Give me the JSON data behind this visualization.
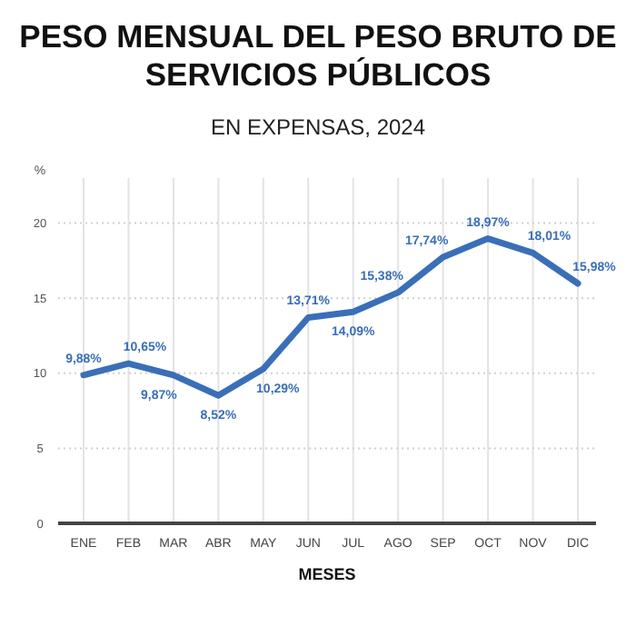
{
  "chart_data": {
    "type": "line",
    "title": "PESO MENSUAL DEL PESO BRUTO DE SERVICIOS PÚBLICOS",
    "subtitle": "EN EXPENSAS, 2024",
    "xlabel": "MESES",
    "ylabel": "%",
    "categories": [
      "ENE",
      "FEB",
      "MAR",
      "ABR",
      "MAY",
      "JUN",
      "JUL",
      "AGO",
      "SEP",
      "OCT",
      "NOV",
      "DIC"
    ],
    "values": [
      9.88,
      10.65,
      9.87,
      8.52,
      10.29,
      13.71,
      14.09,
      15.38,
      17.74,
      18.97,
      18.01,
      15.98
    ],
    "value_labels": [
      "9,88%",
      "10,65%",
      "9,87%",
      "8,52%",
      "10,29%",
      "13,71%",
      "14,09%",
      "15,38%",
      "17,74%",
      "18,97%",
      "18,01%",
      "15,98%"
    ],
    "color": "#3a6fb8",
    "ylim": [
      0,
      23
    ],
    "yticks": [
      0,
      5,
      10,
      15,
      20
    ],
    "grid": true,
    "marker": "none",
    "line_style": "solid"
  }
}
